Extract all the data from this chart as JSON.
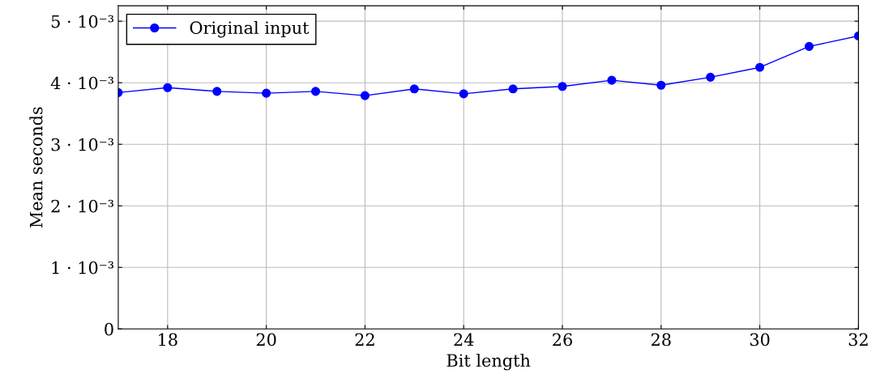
{
  "chart_data": {
    "type": "line",
    "xlabel": "Bit length",
    "ylabel": "Mean seconds",
    "x": [
      17,
      18,
      19,
      20,
      21,
      22,
      23,
      24,
      25,
      26,
      27,
      28,
      29,
      30,
      31,
      32
    ],
    "series": [
      {
        "name": "Original input",
        "color": "#0000ff",
        "values": [
          0.00384,
          0.00392,
          0.00386,
          0.00383,
          0.00386,
          0.00379,
          0.0039,
          0.00382,
          0.0039,
          0.00394,
          0.00404,
          0.00396,
          0.00409,
          0.00425,
          0.00459,
          0.00476
        ]
      }
    ],
    "xlim": [
      17,
      32
    ],
    "xticks": [
      18,
      20,
      22,
      24,
      26,
      28,
      30,
      32
    ],
    "ylim": [
      0,
      0.00525
    ],
    "yticks": [
      0,
      {
        "value": 0.001,
        "label": "1 · 10⁻³"
      },
      {
        "value": 0.002,
        "label": "2 · 10⁻³"
      },
      {
        "value": 0.003,
        "label": "3 · 10⁻³"
      },
      {
        "value": 0.004,
        "label": "4 · 10⁻³"
      },
      {
        "value": 0.005,
        "label": "5 · 10⁻³"
      }
    ],
    "grid": true,
    "legend": "top left",
    "marker": "circle",
    "line_style": "solid"
  }
}
